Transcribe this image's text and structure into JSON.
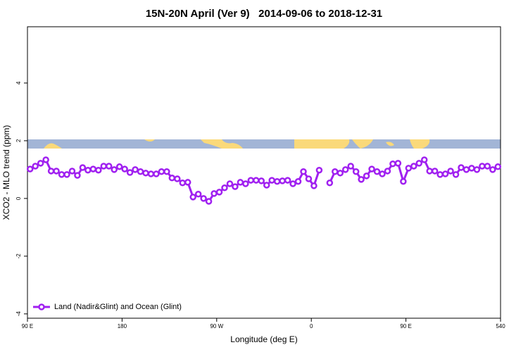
{
  "chart_data": {
    "type": "line",
    "title": "15N-20N April (Ver 9)   2014-09-06 to 2018-12-31",
    "x_label": "Longitude (deg E)",
    "y_label": "XCO2 - MLO trend (ppm)",
    "xlim": [
      90,
      540
    ],
    "ylim": [
      -4.15,
      5.95
    ],
    "xticks": [
      {
        "value": 90,
        "label": "90 E"
      },
      180,
      {
        "value": 270,
        "label": "90 W"
      },
      {
        "value": 360,
        "label": "0"
      },
      {
        "value": 450,
        "label": "90 E"
      },
      540
    ],
    "yticks": [
      -4,
      -2,
      0,
      2,
      4
    ],
    "grid": false,
    "legend": "bottom-left",
    "x": [
      92.5,
      97.5,
      102.5,
      107.5,
      112.5,
      117.5,
      122.5,
      127.5,
      132.5,
      137.5,
      142.5,
      147.5,
      152.5,
      157.5,
      162.5,
      167.5,
      172.5,
      177.5,
      182.5,
      187.5,
      192.5,
      197.5,
      202.5,
      207.5,
      212.5,
      217.5,
      222.5,
      227.5,
      232.5,
      237.5,
      242.5,
      247.5,
      252.5,
      257.5,
      262.5,
      267.5,
      272.5,
      277.5,
      282.5,
      287.5,
      292.5,
      297.5,
      302.5,
      307.5,
      312.5,
      317.5,
      322.5,
      327.5,
      332.5,
      337.5,
      342.5,
      347.5,
      352.5,
      357.5,
      362.5,
      367.5,
      372.5,
      377.5,
      382.5,
      387.5,
      392.5,
      397.5,
      402.5,
      407.5,
      412.5,
      417.5,
      422.5,
      427.5,
      432.5,
      437.5,
      442.5,
      447.5,
      452.5,
      457.5,
      462.5,
      467.5,
      472.5,
      477.5,
      482.5,
      487.5,
      492.5,
      497.5,
      502.5,
      507.5,
      512.5,
      517.5,
      522.5,
      527.5,
      532.5,
      537.5
    ],
    "series": [
      {
        "name": "Land (Nadir&Glint) and Ocean (Glint)",
        "color": "#a020f0",
        "values": [
          1.02,
          1.12,
          1.22,
          1.34,
          0.95,
          0.95,
          0.83,
          0.83,
          0.95,
          0.8,
          1.07,
          0.98,
          1.02,
          0.98,
          1.12,
          1.12,
          1.0,
          1.1,
          1.02,
          0.9,
          1.0,
          0.93,
          0.88,
          0.85,
          0.85,
          0.93,
          0.93,
          0.71,
          0.68,
          0.54,
          0.56,
          0.05,
          0.15,
          0.0,
          -0.1,
          0.17,
          0.22,
          0.37,
          0.51,
          0.41,
          0.56,
          0.51,
          0.63,
          0.63,
          0.61,
          0.46,
          0.63,
          0.59,
          0.61,
          0.63,
          0.51,
          0.59,
          0.93,
          0.68,
          0.44,
          0.98,
          null,
          0.54,
          0.93,
          0.88,
          1.0,
          1.12,
          0.93,
          0.66,
          0.78,
          1.02,
          0.93,
          0.85,
          0.95,
          1.2,
          1.22,
          0.59,
          1.05,
          1.12,
          1.22,
          1.34,
          0.95,
          0.95,
          0.83,
          0.85,
          0.95,
          0.83,
          1.07,
          1.0,
          1.05,
          1.0,
          1.12,
          1.12,
          1.0,
          1.1
        ]
      }
    ]
  }
}
